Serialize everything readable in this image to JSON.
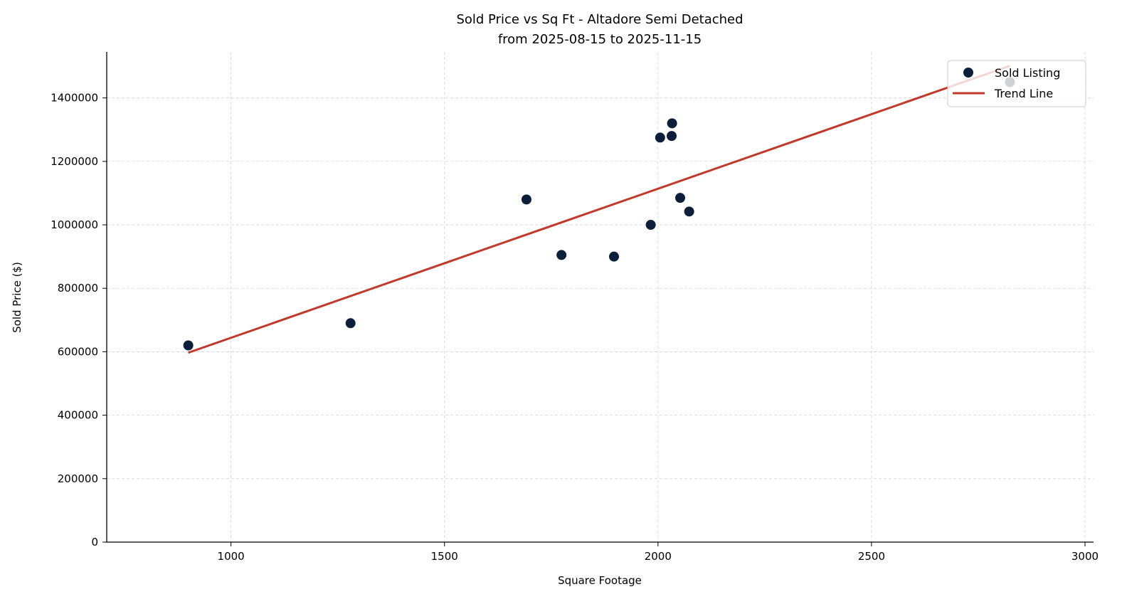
{
  "chart_data": {
    "type": "scatter",
    "title": "Sold Price vs Sq Ft - Altadore Semi Detached",
    "subtitle": "from 2025-08-15 to 2025-11-15",
    "xlabel": "Square Footage",
    "ylabel": "Sold Price ($)",
    "xlim": [
      709,
      3020
    ],
    "ylim": [
      0,
      1545000
    ],
    "xticks": [
      1000,
      1500,
      2000,
      2500,
      3000
    ],
    "yticks": [
      0,
      200000,
      400000,
      600000,
      800000,
      1000000,
      1200000,
      1400000
    ],
    "grid": true,
    "legend_position": "top-right",
    "colors": {
      "points": "#0b1f3a",
      "trend": "#c0392b"
    },
    "series": [
      {
        "name": "Sold Listing",
        "type": "scatter",
        "x": [
          900,
          1280,
          1692,
          1774,
          1897,
          1983,
          2005,
          2033,
          2032,
          2052,
          2073,
          2824
        ],
        "y": [
          620000,
          690000,
          1080000,
          905000,
          900000,
          1000000,
          1275000,
          1320000,
          1280000,
          1085000,
          1042000,
          1450000
        ]
      },
      {
        "name": "Trend Line",
        "type": "line",
        "x": [
          900,
          2824
        ],
        "y": [
          597000,
          1501000
        ]
      }
    ]
  }
}
